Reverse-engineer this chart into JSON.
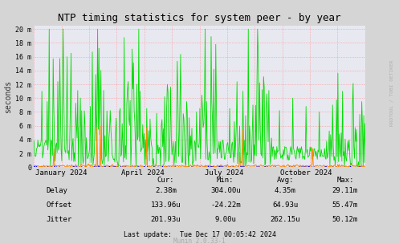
{
  "title": "NTP timing statistics for system peer - by year",
  "ylabel": "seconds",
  "background_color": "#d5d5d5",
  "plot_bg_color": "#e8e8f0",
  "yticks_labels": [
    "0",
    "2 m",
    "4 m",
    "6 m",
    "8 m",
    "10 m",
    "12 m",
    "14 m",
    "16 m",
    "18 m",
    "20 m"
  ],
  "yticks_values": [
    0,
    0.002,
    0.004,
    0.006,
    0.008,
    0.01,
    0.012,
    0.014,
    0.016,
    0.018,
    0.02
  ],
  "ymax": 0.0205,
  "xticklabels": [
    "January 2024",
    "April 2024",
    "July 2024",
    "October 2024"
  ],
  "xtick_positions": [
    0.0822,
    0.3288,
    0.5753,
    0.8219
  ],
  "stats_headers": [
    "Cur:",
    "Min:",
    "Avg:",
    "Max:"
  ],
  "stats_rows": [
    [
      "Delay",
      "2.38m",
      "304.00u",
      "4.35m",
      "29.11m"
    ],
    [
      "Offset",
      "133.96u",
      "-24.22m",
      "64.93u",
      "55.47m"
    ],
    [
      "Jitter",
      "201.93u",
      "9.00u",
      "262.15u",
      "50.12m"
    ]
  ],
  "footer": "Last update:  Tue Dec 17 00:05:42 2024",
  "munin_version": "Munin 2.0.33-1",
  "watermark": "RRDTOOL / TOBI OETIKER",
  "delay_color": "#00dd00",
  "offset_color": "#0000ff",
  "jitter_color": "#ff8800",
  "legend_colors": [
    "#00dd00",
    "#0000ff",
    "#ff8800"
  ]
}
